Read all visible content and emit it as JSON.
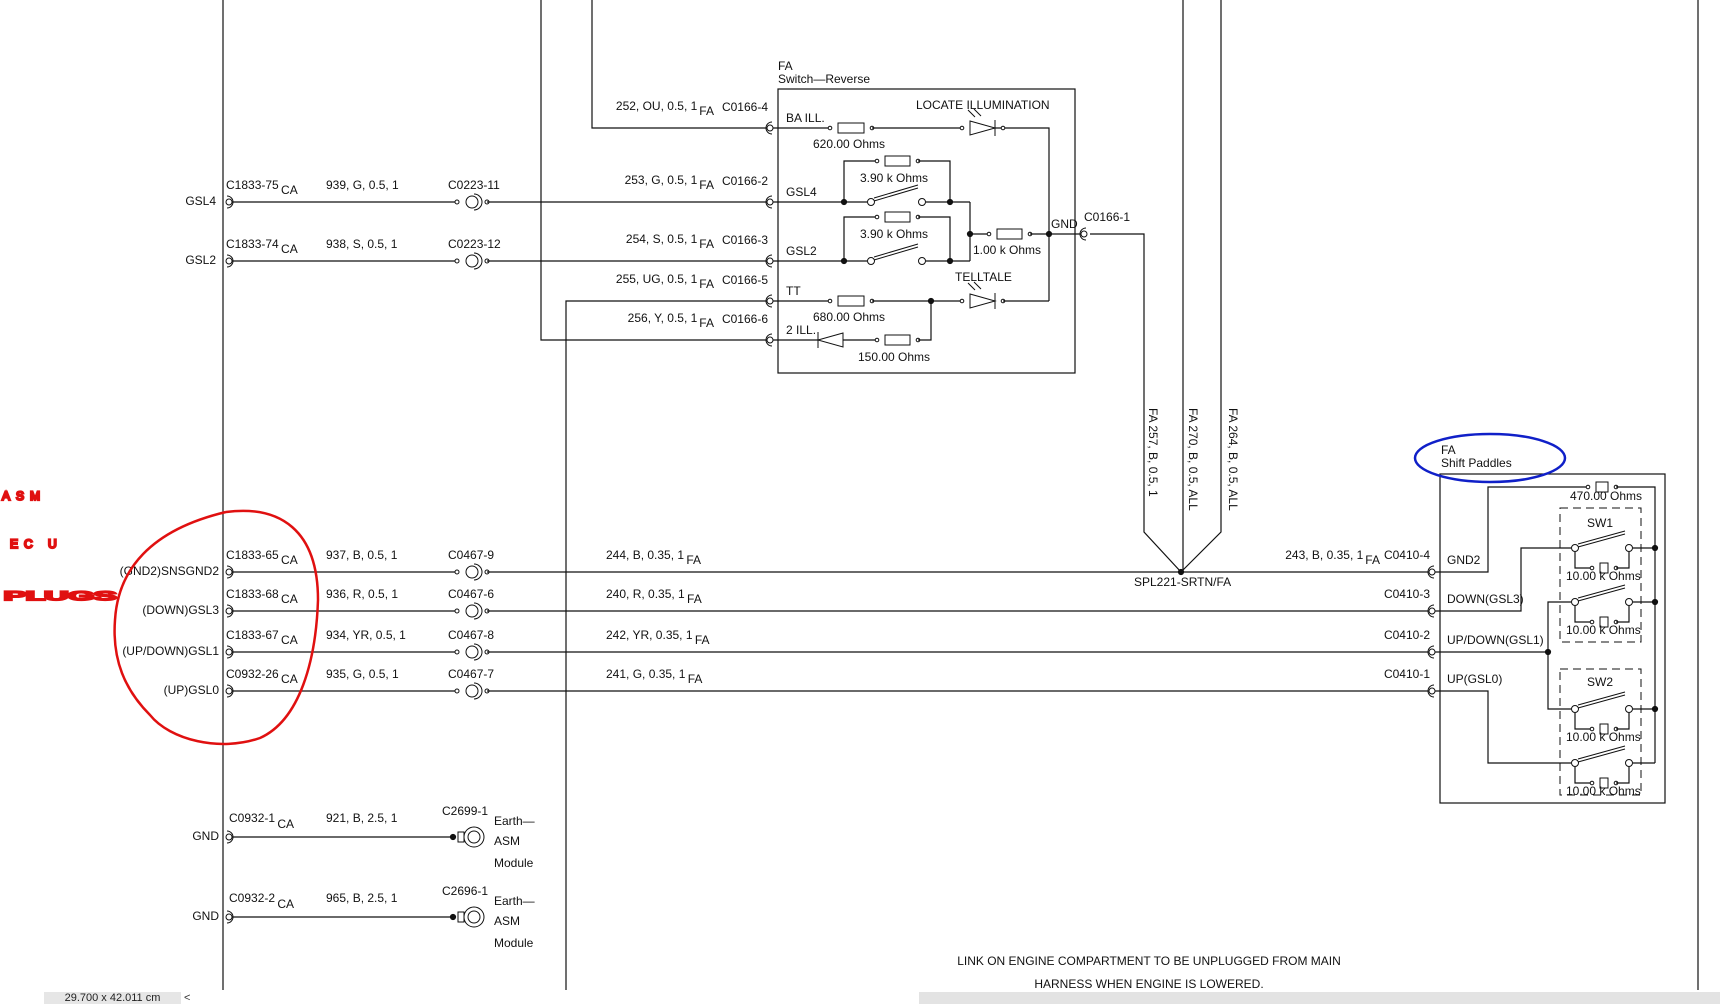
{
  "colors": {
    "wire": "#111111",
    "annotation_red": "#e01010",
    "annotation_blue": "#1020c8"
  },
  "top_rows": [
    {
      "wire": "252, OU, 0.5, 1",
      "sub": "FA",
      "end": "C0166-4",
      "inner": "BA ILL."
    },
    {
      "label": "GSL4",
      "conn": "C1833-75",
      "conn_sub": "CA",
      "wire1": "939, G, 0.5, 1",
      "mid": "C0223-11",
      "wire": "253, G, 0.5, 1",
      "sub": "FA",
      "end": "C0166-2",
      "inner": "GSL4"
    },
    {
      "label": "GSL2",
      "conn": "C1833-74",
      "conn_sub": "CA",
      "wire1": "938, S, 0.5, 1",
      "mid": "C0223-12",
      "wire": "254, S, 0.5, 1",
      "sub": "FA",
      "end": "C0166-3",
      "inner": "GSL2"
    },
    {
      "wire": "255, UG, 0.5, 1",
      "sub": "FA",
      "end": "C0166-5",
      "inner": "TT"
    },
    {
      "wire": "256, Y, 0.5, 1",
      "sub": "FA",
      "end": "C0166-6",
      "inner": "2 ILL."
    }
  ],
  "switch_reverse": {
    "tag": "FA",
    "title": "Switch—Reverse",
    "locate": "LOCATE ILLUMINATION",
    "telltale": "TELLTALE",
    "r620": "620.00 Ohms",
    "r390a": "3.90 k Ohms",
    "r390b": "3.90 k Ohms",
    "r100": "1.00 k Ohms",
    "r680": "680.00 Ohms",
    "r150": "150.00 Ohms",
    "gnd": "GND",
    "gnd_conn": "C0166-1"
  },
  "vertical_wires": [
    {
      "text": "FA  257, B, 0.5, 1"
    },
    {
      "text": "FA  270, B, 0.5, ALL"
    },
    {
      "text": "FA  264, B, 0.5, ALL"
    }
  ],
  "splice": "SPL221-SRTN/FA",
  "paddle_rows": [
    {
      "label": "(GND2)SNSGND2",
      "conn": "C1833-65",
      "conn_sub": "CA",
      "wire1": "937, B, 0.5, 1",
      "mid": "C0467-9",
      "wire": "244, B, 0.35, 1",
      "sub": "FA",
      "wire_r": "243, B, 0.35, 1",
      "sub_r": "FA",
      "end": "C0410-4",
      "inner": "GND2"
    },
    {
      "label": "(DOWN)GSL3",
      "conn": "C1833-68",
      "conn_sub": "CA",
      "wire1": "936, R, 0.5, 1",
      "mid": "C0467-6",
      "wire": "240, R, 0.35, 1",
      "sub": "FA",
      "end": "C0410-3",
      "inner": "DOWN(GSL3)"
    },
    {
      "label": "(UP/DOWN)GSL1",
      "conn": "C1833-67",
      "conn_sub": "CA",
      "wire1": "934, YR, 0.5, 1",
      "mid": "C0467-8",
      "wire": "242, YR, 0.35, 1",
      "sub": "FA",
      "end": "C0410-2",
      "inner": "UP/DOWN(GSL1)"
    },
    {
      "label": "(UP)GSL0",
      "conn": "C0932-26",
      "conn_sub": "CA",
      "wire1": "935, G, 0.5, 1",
      "mid": "C0467-7",
      "wire": "241, G, 0.35, 1",
      "sub": "FA",
      "end": "C0410-1",
      "inner": "UP(GSL0)"
    }
  ],
  "shift_paddles": {
    "tag": "FA",
    "title": "Shift Paddles",
    "r470": "470.00 Ohms",
    "sw1": "SW1",
    "sw2": "SW2",
    "r10k": [
      "10.00 k Ohms",
      "10.00 k Ohms",
      "10.00 k Ohms",
      "10.00 k Ohms"
    ]
  },
  "earth_rows": [
    {
      "label": "GND",
      "conn": "C0932-1",
      "conn_sub": "CA",
      "wire": "921, B, 2.5, 1",
      "end": "C2699-1",
      "name1": "Earth—",
      "name2": "ASM",
      "name3": "Module"
    },
    {
      "label": "GND",
      "conn": "C0932-2",
      "conn_sub": "CA",
      "wire": "965, B, 2.5, 1",
      "end": "C2696-1",
      "name1": "Earth—",
      "name2": "ASM",
      "name3": "Module"
    }
  ],
  "note": {
    "line1": "LINK ON ENGINE COMPARTMENT TO BE UNPLUGGED FROM MAIN",
    "line2": "HARNESS WHEN ENGINE IS LOWERED."
  },
  "handwriting": {
    "line1": "ASM",
    "line2": "EC U",
    "line3": "PLUGS"
  },
  "statusbar": {
    "page_size": "29.700 x 42.011 cm",
    "scroll_left": "<"
  }
}
